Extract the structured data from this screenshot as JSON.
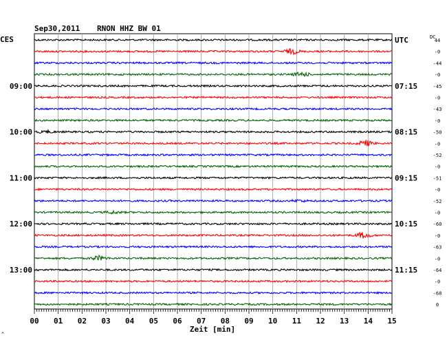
{
  "header": {
    "date": "Sep30,2011",
    "station": "RNON HHZ BW 01",
    "left_tz": "CES",
    "right_tz": "UTC",
    "dc_label": "DC"
  },
  "x_axis": {
    "label": "Zeit [min]",
    "ticks": [
      "00",
      "01",
      "02",
      "03",
      "04",
      "05",
      "06",
      "07",
      "08",
      "09",
      "10",
      "11",
      "12",
      "13",
      "14",
      "15"
    ]
  },
  "corner_mark": "^",
  "colors": {
    "cycle": [
      "#000000",
      "#ff0000",
      "#0000ff",
      "#006400"
    ],
    "grid": "#9a9a9a",
    "axis": "#000000"
  },
  "chart_data": {
    "type": "line",
    "title": "Sep30,2011   RNON HHZ BW 01",
    "xlabel": "Zeit [min]",
    "xlim": [
      0,
      15
    ],
    "traces_per_hour": 4,
    "minutes_per_trace": 15,
    "row_count": 24,
    "left_time_labels": [
      {
        "row": 4,
        "text": "09:00"
      },
      {
        "row": 8,
        "text": "10:00"
      },
      {
        "row": 12,
        "text": "11:00"
      },
      {
        "row": 16,
        "text": "12:00"
      },
      {
        "row": 20,
        "text": "13:00"
      }
    ],
    "right_time_labels": [
      {
        "row": 0,
        "text": "UTC"
      },
      {
        "row": 4,
        "text": "07:15"
      },
      {
        "row": 8,
        "text": "08:15"
      },
      {
        "row": 12,
        "text": "09:15"
      },
      {
        "row": 16,
        "text": "10:15"
      },
      {
        "row": 20,
        "text": "11:15"
      }
    ],
    "dc_offsets": [
      "44",
      "-0",
      "-44",
      "-0",
      "-45",
      "-0",
      "-43",
      "-0",
      "-50",
      "-0",
      "-52",
      "-0",
      "-51",
      "-0",
      "-52",
      "-0",
      "-60",
      "-0",
      "-63",
      "-0",
      "-64",
      "-0",
      "-68",
      "0"
    ],
    "events": [
      {
        "row": 1,
        "minute": 10.8,
        "amplitude": 3.5
      },
      {
        "row": 3,
        "minute": 11.2,
        "amplitude": 3
      },
      {
        "row": 8,
        "minute": 0.5,
        "amplitude": 1.5
      },
      {
        "row": 9,
        "minute": 13.9,
        "amplitude": 4
      },
      {
        "row": 15,
        "minute": 3.3,
        "amplitude": 1.5
      },
      {
        "row": 17,
        "minute": 13.8,
        "amplitude": 4
      },
      {
        "row": 19,
        "minute": 2.7,
        "amplitude": 3
      },
      {
        "row": 14,
        "minute": 11.1,
        "amplitude": 1.2
      }
    ]
  }
}
